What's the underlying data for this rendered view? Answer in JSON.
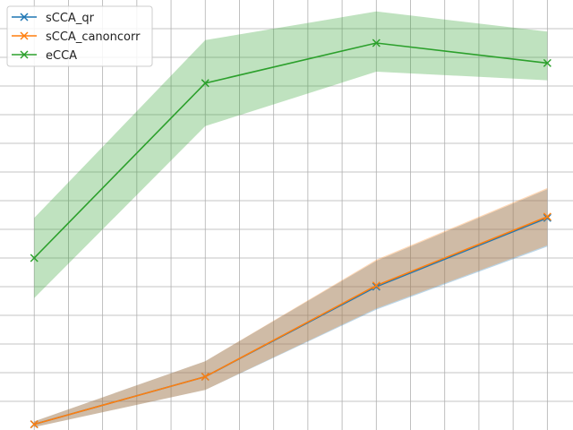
{
  "chart_data": {
    "type": "line",
    "x": [
      1,
      2,
      3,
      4
    ],
    "xlim": [
      0.8,
      4.15
    ],
    "ylim": [
      0.0,
      7.5
    ],
    "grid": true,
    "legend_position": "top-left",
    "title": "",
    "xlabel": "",
    "ylabel": "",
    "series": [
      {
        "name": "sCCA_qr",
        "color": "#1f77b4",
        "marker": "x",
        "values": [
          0.1,
          0.93,
          2.5,
          3.7
        ],
        "lower": [
          0.05,
          0.7,
          2.1,
          3.2
        ],
        "upper": [
          0.15,
          1.2,
          2.95,
          4.2
        ]
      },
      {
        "name": "sCCA_canoncorr",
        "color": "#ff7f0e",
        "marker": "x",
        "values": [
          0.1,
          0.93,
          2.52,
          3.72
        ],
        "lower": [
          0.05,
          0.7,
          2.12,
          3.22
        ],
        "upper": [
          0.15,
          1.2,
          2.97,
          4.22
        ]
      },
      {
        "name": "eCCA",
        "color": "#2ca02c",
        "marker": "x",
        "values": [
          3.0,
          6.05,
          6.75,
          6.4
        ],
        "lower": [
          2.3,
          5.3,
          6.25,
          6.1
        ],
        "upper": [
          3.7,
          6.8,
          7.3,
          6.95
        ]
      }
    ]
  }
}
